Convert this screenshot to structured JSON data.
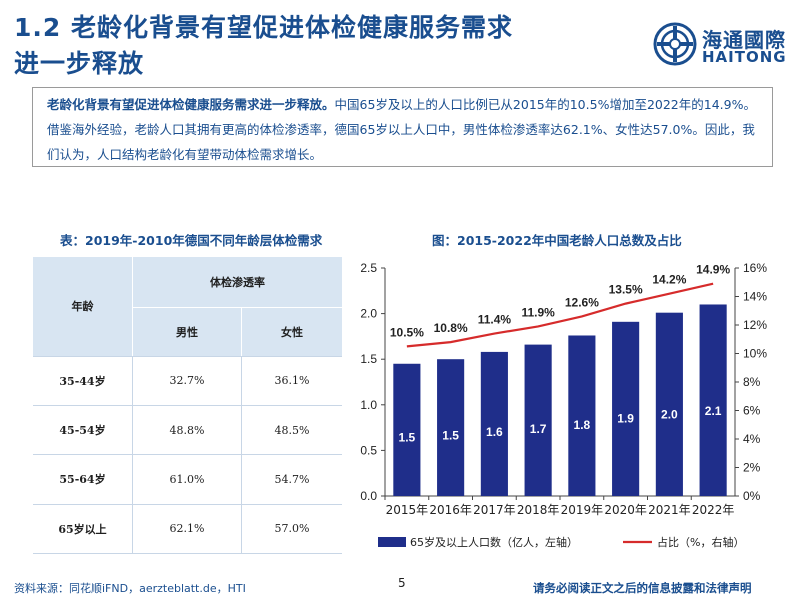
{
  "header": {
    "title_line1": "1.2 老龄化背景有望促进体检健康服务需求",
    "title_line2": "进一步释放",
    "logo_cn": "海通國際",
    "logo_en": "HAITONG"
  },
  "summary": {
    "bold": "老龄化背景有望促进体检健康服务需求进一步释放。",
    "text": "中国65岁及以上的人口比例已从2015年的10.5%增加至2022年的14.9%。借鉴海外经验，老龄人口其拥有更高的体检渗透率，德国65岁以上人口中，男性体检渗透率达62.1%、女性达57.0%。因此，我们认为，人口结构老龄化有望带动体检需求增长。"
  },
  "table": {
    "title": "表：2019年-2010年德国不同年龄层体检需求",
    "age_header": "年龄",
    "penetration_header": "体检渗透率",
    "male_header": "男性",
    "female_header": "女性",
    "rows": [
      {
        "age": "35-44岁",
        "male": "32.7%",
        "female": "36.1%"
      },
      {
        "age": "45-54岁",
        "male": "48.8%",
        "female": "48.5%"
      },
      {
        "age": "55-64岁",
        "male": "61.0%",
        "female": "54.7%"
      },
      {
        "age": "65岁以上",
        "male": "62.1%",
        "female": "57.0%"
      }
    ]
  },
  "chart_data": {
    "type": "bar",
    "title": "图：2015-2022年中国老龄人口总数及占比",
    "categories": [
      "2015年",
      "2016年",
      "2017年",
      "2018年",
      "2019年",
      "2020年",
      "2021年",
      "2022年"
    ],
    "series": [
      {
        "name": "65岁及以上人口数（亿人，左轴）",
        "type": "bar",
        "axis": "left",
        "color": "#1f2e8a",
        "values": [
          1.45,
          1.5,
          1.58,
          1.66,
          1.76,
          1.91,
          2.01,
          2.1
        ],
        "labels": [
          "1.5",
          "1.5",
          "1.6",
          "1.7",
          "1.8",
          "1.9",
          "2.0",
          "2.1"
        ]
      },
      {
        "name": "占比（%，右轴）",
        "type": "line",
        "axis": "right",
        "color": "#d62b2b",
        "values": [
          10.5,
          10.8,
          11.4,
          11.9,
          12.6,
          13.5,
          14.2,
          14.9
        ],
        "labels": [
          "10.5%",
          "10.8%",
          "11.4%",
          "11.9%",
          "12.6%",
          "13.5%",
          "14.2%",
          "14.9%"
        ]
      }
    ],
    "y_left": {
      "min": 0,
      "max": 2.5,
      "ticks": [
        "0.0",
        "0.5",
        "1.0",
        "1.5",
        "2.0",
        "2.5"
      ]
    },
    "y_right": {
      "min": 0,
      "max": 16,
      "ticks": [
        "0%",
        "2%",
        "4%",
        "6%",
        "8%",
        "10%",
        "12%",
        "14%",
        "16%"
      ]
    },
    "legend_position": "bottom",
    "grid": false
  },
  "footer": {
    "source": "资料来源：同花顺iFND，aerzteblatt.de，HTI",
    "page": "5",
    "disclaimer": "请务必阅读正文之后的信息披露和法律声明"
  }
}
